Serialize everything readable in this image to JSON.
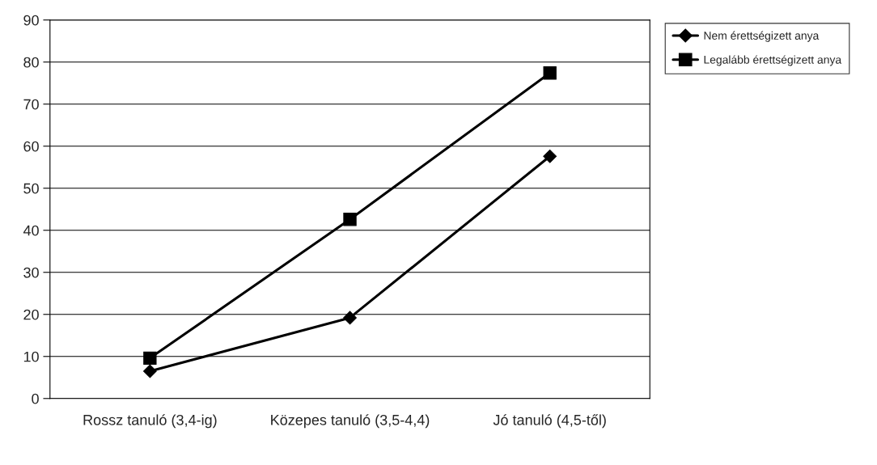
{
  "chart_data": {
    "type": "line",
    "categories": [
      "Rossz tanuló (3,4-ig)",
      "Közepes tanuló (3,5-4,4)",
      "Jó tanuló (4,5-től)"
    ],
    "series": [
      {
        "name": "Nem érettségizett anya",
        "color": "#000000",
        "marker": "diamond",
        "values": [
          6.5,
          19.2,
          57.6
        ]
      },
      {
        "name": "Legalább érettségizett anya",
        "color": "#000000",
        "marker": "square",
        "values": [
          9.6,
          42.6,
          77.4
        ]
      }
    ],
    "ylim": [
      0,
      90
    ],
    "yticks": [
      0,
      10,
      20,
      30,
      40,
      50,
      60,
      70,
      80,
      90
    ],
    "grid": "y",
    "legend": "top right",
    "line_style": "solid"
  }
}
